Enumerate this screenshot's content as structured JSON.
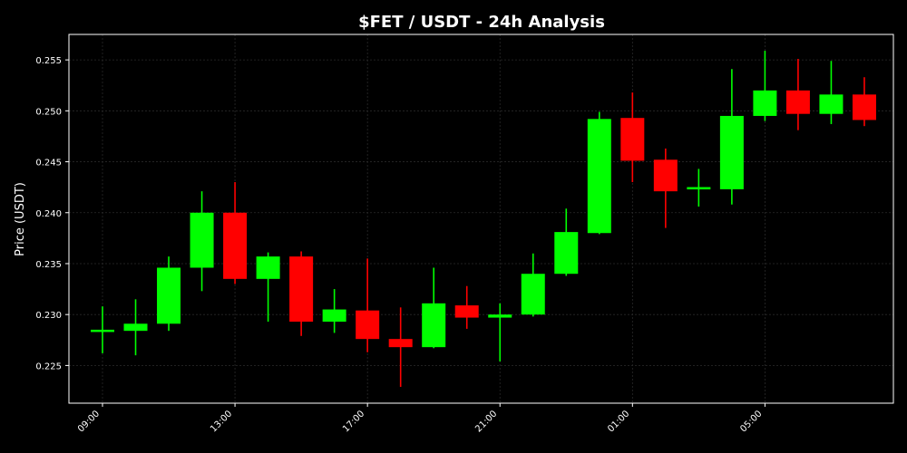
{
  "chart_data": {
    "type": "candlestick",
    "title": "$FET / USDT - 24h Analysis",
    "xlabel": "",
    "ylabel": "Price (USDT)",
    "ylim": [
      0.2213,
      0.2575
    ],
    "yticks": [
      "0.225",
      "0.230",
      "0.235",
      "0.240",
      "0.245",
      "0.250",
      "0.255"
    ],
    "ytick_values": [
      0.225,
      0.23,
      0.235,
      0.24,
      0.245,
      0.25,
      0.255
    ],
    "xticks": [
      "09:00",
      "13:00",
      "17:00",
      "21:00",
      "01:00",
      "05:00"
    ],
    "xtick_indices": [
      0,
      4,
      8,
      12,
      16,
      20
    ],
    "grid": true,
    "colors": {
      "up": "#00ff00",
      "down": "#ff0000",
      "background": "#000000",
      "axes": "#ffffff",
      "grid": "#2a2a2a"
    },
    "candles": [
      {
        "time": "09:00",
        "open": 0.2284,
        "high": 0.2308,
        "low": 0.2262,
        "close": 0.2284
      },
      {
        "time": "10:00",
        "open": 0.2284,
        "high": 0.2315,
        "low": 0.226,
        "close": 0.2291
      },
      {
        "time": "11:00",
        "open": 0.2291,
        "high": 0.2357,
        "low": 0.2284,
        "close": 0.2346
      },
      {
        "time": "12:00",
        "open": 0.2346,
        "high": 0.2421,
        "low": 0.2323,
        "close": 0.24
      },
      {
        "time": "13:00",
        "open": 0.24,
        "high": 0.243,
        "low": 0.233,
        "close": 0.2335
      },
      {
        "time": "14:00",
        "open": 0.2335,
        "high": 0.2361,
        "low": 0.2293,
        "close": 0.2357
      },
      {
        "time": "15:00",
        "open": 0.2357,
        "high": 0.2362,
        "low": 0.2279,
        "close": 0.2293
      },
      {
        "time": "16:00",
        "open": 0.2293,
        "high": 0.2325,
        "low": 0.2282,
        "close": 0.2305
      },
      {
        "time": "17:00",
        "open": 0.2304,
        "high": 0.2355,
        "low": 0.2263,
        "close": 0.2276
      },
      {
        "time": "18:00",
        "open": 0.2276,
        "high": 0.2307,
        "low": 0.2229,
        "close": 0.2268
      },
      {
        "time": "19:00",
        "open": 0.2268,
        "high": 0.2346,
        "low": 0.2267,
        "close": 0.2311
      },
      {
        "time": "20:00",
        "open": 0.2309,
        "high": 0.2328,
        "low": 0.2286,
        "close": 0.2297
      },
      {
        "time": "21:00",
        "open": 0.2297,
        "high": 0.2311,
        "low": 0.2254,
        "close": 0.23
      },
      {
        "time": "22:00",
        "open": 0.23,
        "high": 0.236,
        "low": 0.2298,
        "close": 0.234
      },
      {
        "time": "23:00",
        "open": 0.234,
        "high": 0.2404,
        "low": 0.2338,
        "close": 0.2381
      },
      {
        "time": "00:00",
        "open": 0.238,
        "high": 0.2499,
        "low": 0.2379,
        "close": 0.2492
      },
      {
        "time": "01:00",
        "open": 0.2493,
        "high": 0.2518,
        "low": 0.243,
        "close": 0.2451
      },
      {
        "time": "02:00",
        "open": 0.2452,
        "high": 0.2463,
        "low": 0.2385,
        "close": 0.2421
      },
      {
        "time": "03:00",
        "open": 0.2423,
        "high": 0.2443,
        "low": 0.2406,
        "close": 0.2425
      },
      {
        "time": "04:00",
        "open": 0.2423,
        "high": 0.2541,
        "low": 0.2408,
        "close": 0.2495
      },
      {
        "time": "05:00",
        "open": 0.2495,
        "high": 0.2559,
        "low": 0.249,
        "close": 0.252
      },
      {
        "time": "06:00",
        "open": 0.252,
        "high": 0.2551,
        "low": 0.2481,
        "close": 0.2497
      },
      {
        "time": "07:00",
        "open": 0.2497,
        "high": 0.2549,
        "low": 0.2487,
        "close": 0.2516
      },
      {
        "time": "08:00",
        "open": 0.2516,
        "high": 0.2533,
        "low": 0.2485,
        "close": 0.2491
      }
    ]
  }
}
